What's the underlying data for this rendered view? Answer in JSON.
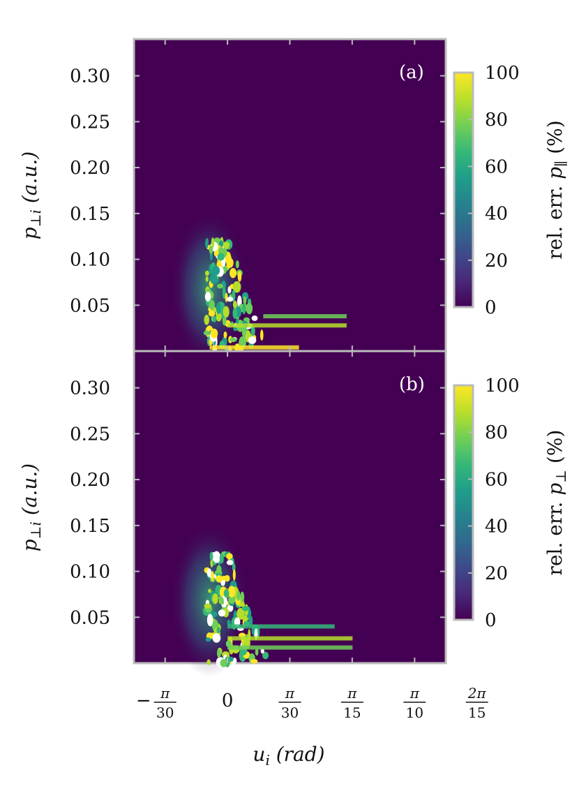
{
  "chart_data": [
    {
      "type": "heatmap",
      "panel_tag": "(a)",
      "ylabel": "p⊥i (a.u.)",
      "ylabel_main": "p",
      "ylabel_sub": "⊥i",
      "ylabel_unit": "(a.u.)",
      "y_ticks": [
        "0.30",
        "0.25",
        "0.20",
        "0.15",
        "0.10",
        "0.05"
      ],
      "y_tick_values": [
        0.3,
        0.25,
        0.2,
        0.15,
        0.1,
        0.05
      ],
      "ylim": [
        0,
        0.34
      ],
      "colorbar": {
        "label": "rel. err. p∥ (%)",
        "label_main": "rel. err. ",
        "label_var": "p",
        "label_sub": "∥",
        "label_unit": " (%)",
        "ticks": [
          "100",
          "80",
          "60",
          "40",
          "20",
          "0"
        ],
        "tick_values": [
          100,
          80,
          60,
          40,
          20,
          0
        ],
        "range": [
          0,
          100
        ],
        "colormap": "viridis"
      }
    },
    {
      "type": "heatmap",
      "panel_tag": "(b)",
      "ylabel": "p⊥i (a.u.)",
      "ylabel_main": "p",
      "ylabel_sub": "⊥i",
      "ylabel_unit": "(a.u.)",
      "y_ticks": [
        "0.30",
        "0.25",
        "0.20",
        "0.15",
        "0.10",
        "0.05"
      ],
      "y_tick_values": [
        0.3,
        0.25,
        0.2,
        0.15,
        0.1,
        0.05
      ],
      "ylim": [
        0,
        0.34
      ],
      "colorbar": {
        "label": "rel. err. p⊥ (%)",
        "label_main": "rel. err. ",
        "label_var": "p",
        "label_sub": "⊥",
        "label_unit": " (%)",
        "ticks": [
          "100",
          "80",
          "60",
          "40",
          "20",
          "0"
        ],
        "tick_values": [
          100,
          80,
          60,
          40,
          20,
          0
        ],
        "range": [
          0,
          100
        ],
        "colormap": "viridis"
      }
    }
  ],
  "x_axis": {
    "label": "ui (rad)",
    "label_main": "u",
    "label_sub": "i",
    "label_unit": "(rad)",
    "xlim": [
      -0.1571,
      0.3665
    ],
    "ticks": [
      {
        "num": "π",
        "den": "30",
        "prefix": "−",
        "value": -0.1047
      },
      {
        "text": "0",
        "value": 0
      },
      {
        "num": "π",
        "den": "30",
        "prefix": "",
        "value": 0.1047
      },
      {
        "num": "π",
        "den": "15",
        "prefix": "",
        "value": 0.2094
      },
      {
        "num": "π",
        "den": "10",
        "prefix": "",
        "value": 0.3142
      },
      {
        "num": "2π",
        "den": "15",
        "prefix": "",
        "value": 0.4189
      }
    ]
  },
  "colors": {
    "background": "#440154",
    "frame": "#bbbbbb",
    "viridis": [
      "#440154",
      "#482878",
      "#3e4989",
      "#31688e",
      "#26828e",
      "#1f9e89",
      "#35b779",
      "#6ece58",
      "#b5de2b",
      "#fde725"
    ]
  }
}
